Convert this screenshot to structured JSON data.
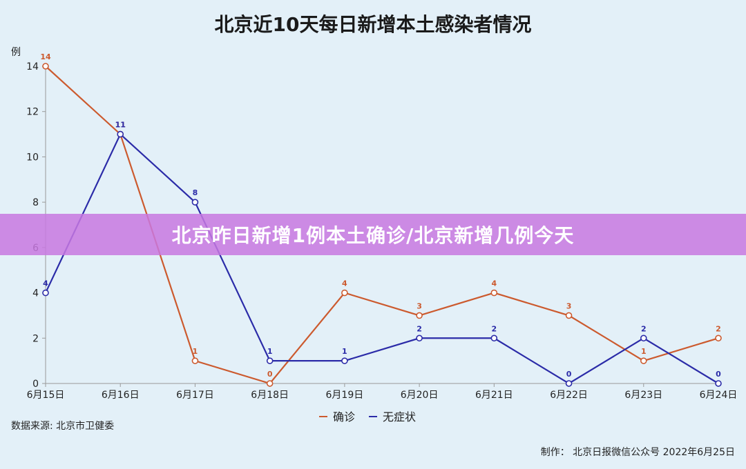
{
  "chart_data": {
    "type": "line",
    "title": "北京近10天每日新增本土感染者情况",
    "ylabel": "例",
    "xlabel": "",
    "categories": [
      "6月15日",
      "6月16日",
      "6月17日",
      "6月18日",
      "6月19日",
      "6月20日",
      "6月21日",
      "6月22日",
      "6月23日",
      "6月24日"
    ],
    "ylim": [
      0,
      14
    ],
    "yticks": [
      0,
      2,
      4,
      6,
      8,
      10,
      12,
      14
    ],
    "grid": false,
    "legend_position": "bottom",
    "series": [
      {
        "name": "确诊",
        "color": "#cc5a2e",
        "values": [
          14,
          11,
          1,
          0,
          4,
          3,
          4,
          3,
          1,
          2
        ]
      },
      {
        "name": "无症状",
        "color": "#2b2ba8",
        "values": [
          4,
          11,
          8,
          1,
          1,
          2,
          2,
          0,
          2,
          0
        ]
      }
    ]
  },
  "source_note": "数据来源: 北京市卫健委",
  "credit_note": "制作： 北京日报微信公众号  2022年6月25日",
  "banner": {
    "text": "北京昨日新增1例本土确诊/北京新增几例今天"
  }
}
